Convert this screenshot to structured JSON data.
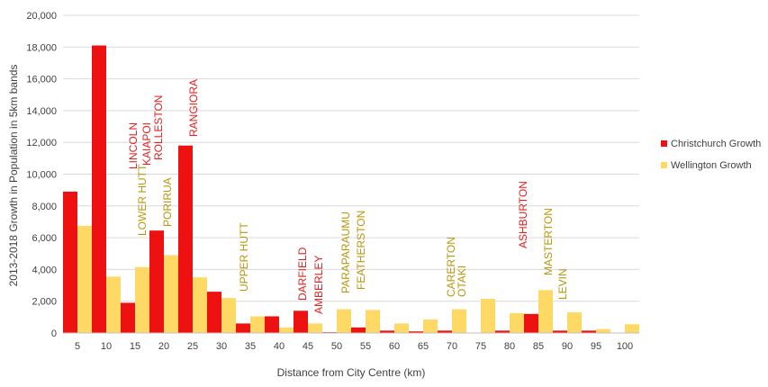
{
  "colors": {
    "christchurch": "#ee1111",
    "wellington": "#ffd966",
    "christchurch_label": "#e52020",
    "wellington_label": "#b8960c"
  },
  "chart_data": {
    "type": "bar",
    "xlabel": "Distance from City Centre (km)",
    "ylabel": "2013-2018 Growth in Population in 5km bands",
    "ylim": [
      0,
      20000
    ],
    "yticks": [
      "0",
      "2,000",
      "4,000",
      "6,000",
      "8,000",
      "10,000",
      "12,000",
      "14,000",
      "16,000",
      "18,000",
      "20,000"
    ],
    "categories": [
      "5",
      "10",
      "15",
      "20",
      "25",
      "30",
      "35",
      "40",
      "45",
      "50",
      "55",
      "60",
      "65",
      "70",
      "75",
      "80",
      "85",
      "90",
      "95",
      "100"
    ],
    "series": [
      {
        "name": "Christchurch Growth",
        "values": [
          8900,
          18100,
          1900,
          6450,
          11800,
          2600,
          600,
          1050,
          1400,
          50,
          350,
          150,
          100,
          150,
          0,
          150,
          1200,
          150,
          150,
          0
        ]
      },
      {
        "name": "Wellington Growth",
        "values": [
          6750,
          3550,
          4150,
          4900,
          3500,
          2200,
          1050,
          350,
          600,
          1500,
          1450,
          600,
          850,
          1500,
          2150,
          1250,
          2700,
          1300,
          250,
          550
        ]
      }
    ],
    "legend_position": "right",
    "annotations": [
      {
        "text": "LINCOLN",
        "series": "Christchurch Growth",
        "x": "15"
      },
      {
        "text": "KAIAPOI",
        "series": "Christchurch Growth",
        "x": "15"
      },
      {
        "text": "ROLLESTON",
        "series": "Christchurch Growth",
        "x": "20"
      },
      {
        "text": "RANGIORA",
        "series": "Christchurch Growth",
        "x": "25"
      },
      {
        "text": "LOWER HUTT",
        "series": "Wellington Growth",
        "x": "15"
      },
      {
        "text": "PORIRUA",
        "series": "Wellington Growth",
        "x": "20"
      },
      {
        "text": "UPPER HUTT",
        "series": "Wellington Growth",
        "x": "35"
      },
      {
        "text": "DARFIELD",
        "series": "Christchurch Growth",
        "x": "45"
      },
      {
        "text": "AMBERLEY",
        "series": "Christchurch Growth",
        "x": "50"
      },
      {
        "text": "PARAPARAUMU",
        "series": "Wellington Growth",
        "x": "50"
      },
      {
        "text": "FEATHERSTON",
        "series": "Wellington Growth",
        "x": "55"
      },
      {
        "text": "CARERTON",
        "series": "Wellington Growth",
        "x": "70"
      },
      {
        "text": "OTAKI",
        "series": "Wellington Growth",
        "x": "70"
      },
      {
        "text": "ASHBURTON",
        "series": "Christchurch Growth",
        "x": "85"
      },
      {
        "text": "MASTERTON",
        "series": "Wellington Growth",
        "x": "85"
      },
      {
        "text": "LEVIN",
        "series": "Wellington Growth",
        "x": "90"
      }
    ]
  }
}
